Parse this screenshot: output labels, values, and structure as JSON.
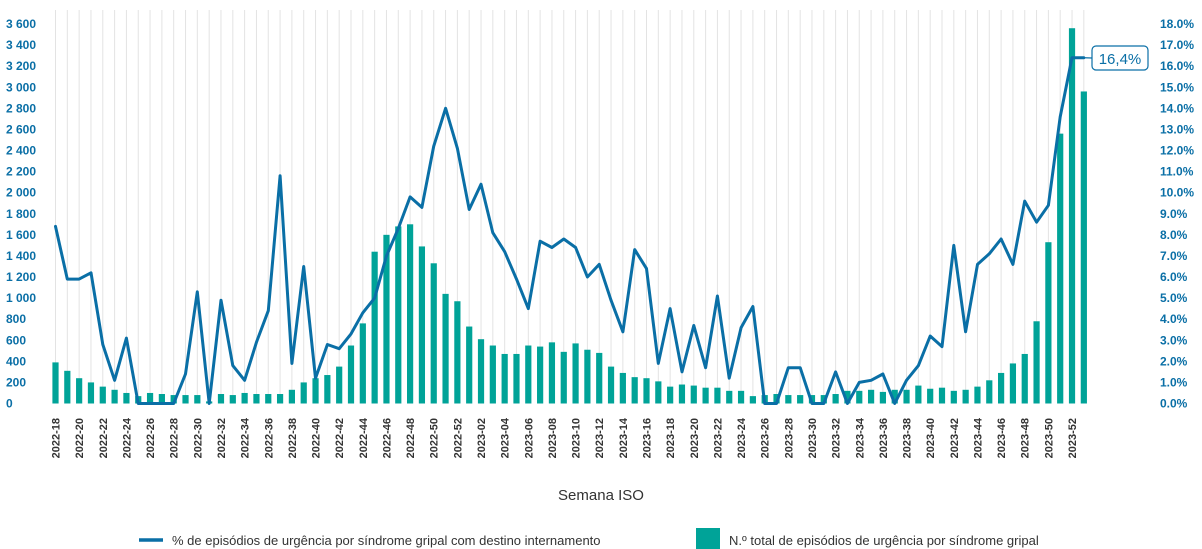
{
  "chart_data": {
    "type": "bar+line",
    "x_title": "Semana ISO",
    "weeks": [
      "2022-18",
      "2022-19",
      "2022-20",
      "2022-21",
      "2022-22",
      "2022-23",
      "2022-24",
      "2022-25",
      "2022-26",
      "2022-27",
      "2022-28",
      "2022-29",
      "2022-30",
      "2022-31",
      "2022-32",
      "2022-33",
      "2022-34",
      "2022-35",
      "2022-36",
      "2022-37",
      "2022-38",
      "2022-39",
      "2022-40",
      "2022-41",
      "2022-42",
      "2022-43",
      "2022-44",
      "2022-45",
      "2022-46",
      "2022-47",
      "2022-48",
      "2022-49",
      "2022-50",
      "2022-51",
      "2022-52",
      "2023-01",
      "2023-02",
      "2023-03",
      "2023-04",
      "2023-05",
      "2023-06",
      "2023-07",
      "2023-08",
      "2023-09",
      "2023-10",
      "2023-11",
      "2023-12",
      "2023-13",
      "2023-14",
      "2023-15",
      "2023-16",
      "2023-17",
      "2023-18",
      "2023-19",
      "2023-20",
      "2023-21",
      "2023-22",
      "2023-23",
      "2023-24",
      "2023-25",
      "2023-26",
      "2023-27",
      "2023-28",
      "2023-29",
      "2023-30",
      "2023-31",
      "2023-32",
      "2023-33",
      "2023-34",
      "2023-35",
      "2023-36",
      "2023-37",
      "2023-38",
      "2023-39",
      "2023-40",
      "2023-41",
      "2023-42",
      "2023-43",
      "2023-44",
      "2023-45",
      "2023-46",
      "2023-47",
      "2023-48",
      "2023-49",
      "2023-50",
      "2023-51",
      "2023-52",
      "2024-01"
    ],
    "x_tick_labels": [
      "2022-18",
      "2022-20",
      "2022-22",
      "2022-24",
      "2022-26",
      "2022-28",
      "2022-30",
      "2022-32",
      "2022-34",
      "2022-36",
      "2022-38",
      "2022-40",
      "2022-42",
      "2022-44",
      "2022-46",
      "2022-48",
      "2022-50",
      "2022-52",
      "2023-02",
      "2023-04",
      "2023-06",
      "2023-08",
      "2023-10",
      "2023-12",
      "2023-14",
      "2023-16",
      "2023-18",
      "2023-20",
      "2023-22",
      "2023-24",
      "2023-26",
      "2023-28",
      "2023-30",
      "2023-32",
      "2023-34",
      "2023-36",
      "2023-38",
      "2023-40",
      "2023-42",
      "2023-44",
      "2023-46",
      "2023-48",
      "2023-50",
      "2023-52"
    ],
    "y_left": {
      "range": [
        0,
        3600
      ],
      "ticks": [
        0,
        200,
        400,
        600,
        800,
        1000,
        1200,
        1400,
        1600,
        1800,
        2000,
        2200,
        2400,
        2600,
        2800,
        3000,
        3200,
        3400,
        3600
      ],
      "tick_labels": [
        "0",
        "200",
        "400",
        "600",
        "800",
        "1 000",
        "1 200",
        "1 400",
        "1 600",
        "1 800",
        "2 000",
        "2 200",
        "2 400",
        "2 600",
        "2 800",
        "3 000",
        "3 200",
        "3 400",
        "3 600"
      ]
    },
    "y_right": {
      "range": [
        0,
        18
      ],
      "ticks": [
        0,
        1,
        2,
        3,
        4,
        5,
        6,
        7,
        8,
        9,
        10,
        11,
        12,
        13,
        14,
        15,
        16,
        17,
        18
      ],
      "tick_labels": [
        "0.0%",
        "1.0%",
        "2.0%",
        "3.0%",
        "4.0%",
        "5.0%",
        "6.0%",
        "7.0%",
        "8.0%",
        "9.0%",
        "10.0%",
        "11.0%",
        "12.0%",
        "13.0%",
        "14.0%",
        "15.0%",
        "16.0%",
        "17.0%",
        "18.0%"
      ]
    },
    "series": [
      {
        "name": "N.º total de episódios de urgência por síndrome gripal",
        "type": "bar",
        "axis": "left",
        "color": "#00A398",
        "values": [
          390,
          310,
          240,
          200,
          160,
          130,
          100,
          70,
          100,
          90,
          80,
          80,
          80,
          20,
          90,
          80,
          100,
          90,
          90,
          90,
          130,
          200,
          240,
          270,
          350,
          550,
          760,
          1440,
          1600,
          1680,
          1700,
          1490,
          1330,
          1040,
          970,
          730,
          610,
          550,
          470,
          470,
          550,
          540,
          580,
          490,
          570,
          510,
          480,
          350,
          290,
          250,
          240,
          210,
          160,
          180,
          170,
          150,
          150,
          120,
          120,
          70,
          80,
          90,
          80,
          80,
          80,
          80,
          90,
          120,
          120,
          130,
          110,
          130,
          130,
          170,
          140,
          150,
          120,
          130,
          160,
          220,
          290,
          380,
          470,
          780,
          1530,
          2560,
          3560,
          2960
        ]
      },
      {
        "name": "% de episódios de urgência por síndrome gripal com destino internamento",
        "type": "line",
        "axis": "right",
        "color": "#0A6FA6",
        "values": [
          8.4,
          5.9,
          5.9,
          6.2,
          2.8,
          1.1,
          3.1,
          0.0,
          0.0,
          0.0,
          0.0,
          1.4,
          5.3,
          0.0,
          4.9,
          1.8,
          1.1,
          2.9,
          4.4,
          10.8,
          1.9,
          6.5,
          1.2,
          2.8,
          2.6,
          3.3,
          4.3,
          5.0,
          7.0,
          8.3,
          9.8,
          9.3,
          12.2,
          14.0,
          12.1,
          9.2,
          10.4,
          8.1,
          7.2,
          5.9,
          4.5,
          7.7,
          7.4,
          7.8,
          7.4,
          6.0,
          6.6,
          4.9,
          3.4,
          7.3,
          6.4,
          1.9,
          4.5,
          1.5,
          3.7,
          1.7,
          5.1,
          1.2,
          3.6,
          4.6,
          0.0,
          0.0,
          1.7,
          1.7,
          0.0,
          0.0,
          1.5,
          0.0,
          1.0,
          1.1,
          1.4,
          0.0,
          1.1,
          1.8,
          3.2,
          2.7,
          7.5,
          3.4,
          6.6,
          7.1,
          7.8,
          6.6,
          9.6,
          8.6,
          9.4,
          13.6,
          16.4,
          16.4
        ]
      }
    ],
    "callout": {
      "label": "16,4%",
      "week": "2024-01",
      "value": 16.4
    },
    "grid": "vertical",
    "legend_position": "bottom"
  },
  "legend": {
    "line_label": "% de episódios de urgência por síndrome gripal com destino internamento",
    "bar_label": "N.º total de episódios de urgência por síndrome gripal"
  },
  "colors": {
    "bar": "#00A398",
    "line": "#0A6FA6",
    "left_ticks": "#0A6FA6",
    "right_ticks": "#0A6FA6",
    "grid": "#E3E3E3"
  }
}
